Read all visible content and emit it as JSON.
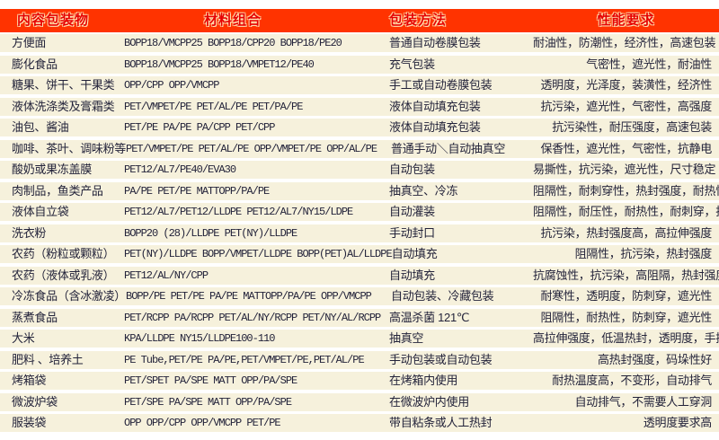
{
  "theme": {
    "header_bg": "#ff3300",
    "header_text": "#e60000",
    "row_bg": "#f6f1dc",
    "body_text": "#23233a",
    "separator": "#ffffff"
  },
  "table": {
    "headers": {
      "item": "内容包装物",
      "materials": "材料组合",
      "method": "包装方法",
      "performance": "性能要求"
    },
    "rows": [
      {
        "item": "方便面",
        "materials": "BOPP18/VMCPP25  BOPP18/CPP20  BOPP18/PE20",
        "method": "普通自动卷膜包装",
        "performance": "耐油性，防潮性，经济性，高速包装"
      },
      {
        "item": "膨化食品",
        "materials": "BOPP18/VMCPP25  BOPP18/VMPET12/PE40",
        "method": "充气包装",
        "performance": "气密性，遮光性，耐油性"
      },
      {
        "item": "糖果、饼干、干果类",
        "materials": "OPP/CPP OPP/VMCPP",
        "method": "手工或自动卷膜包装",
        "performance": "透明度，光泽度，装潢性，经济性"
      },
      {
        "item": "液体洗涤类及膏霜类",
        "materials": "PET/VMPET/PE PET/AL/PE  PET/PA/PE",
        "method": "液体自动填充包装",
        "performance": "抗污染，遮光性，气密性，高强度"
      },
      {
        "item": "油包、酱油",
        "materials": "PET/PE  PA/PE PA/CPP PET/CPP",
        "method": "液体自动填充包装",
        "performance": "抗污染性，耐压强度，高速包装"
      },
      {
        "item": "咖啡、茶叶、调味粉等",
        "materials": "PET/VMPET/PE PET/AL/PE OPP/VMPET/PE OPP/AL/PE",
        "method": "普通手动＼自动抽真空",
        "performance": "保香性，遮光性，气密性，抗静电"
      },
      {
        "item": "酸奶或果冻盖膜",
        "materials": "PET12/AL7/PE40/EVA30",
        "method": "自动包装",
        "performance": "易撕性，抗污染，遮光性，尺寸稳定"
      },
      {
        "item": "肉制品，鱼类产品",
        "materials": "PA/PE PET/PE MATTOPP/PA/PE",
        "method": "抽真空、冷冻",
        "performance": "阻隔性，耐刺穿性，热封强度，耐热性"
      },
      {
        "item": "液体自立袋",
        "materials": "PET12/AL7/PET12/LLDPE PET12/AL7/NY15/LDPE",
        "method": "自动灌装",
        "performance": "阻隔性，耐压性，耐热性，耐刺穿，抗污染"
      },
      {
        "item": "洗衣粉",
        "materials": "BOPP20 (28)/LLDPE PET(NY)/LLDPE",
        "method": "手动封口",
        "performance": "抗污染，热封强度高，高拉伸强度"
      },
      {
        "item": "农药（粉粒或颗粒）",
        "materials": "PET(NY)/LLDPE BOPP/VMPET/LLDPE BOPP(PET)AL/LLDPE",
        "method": "自动填充",
        "performance": "阻隔性，抗污染，热封强度"
      },
      {
        "item": "农药（液体或乳液）",
        "materials": "PET12/AL/NY/CPP",
        "method": "自动填充",
        "performance": "抗腐蚀性，抗污染，高阻隔，热封强度"
      },
      {
        "item": "冷冻食品（含冰激凌）",
        "materials": "BOPP/PE PET/PE PA/PE MATTOPP/PA/PE OPP/VMCPP",
        "method": "自动包装、冷藏包装",
        "performance": "耐寒性，透明度，防刺穿，遮光性"
      },
      {
        "item": "蒸煮食品",
        "materials": "PET/RCPP PA/RCPP PET/AL/NY/RCPP PET/NY/AL/RCPP",
        "method": "高温杀菌 121℃",
        "performance": "阻隔性，耐热性，防刺穿，遮光性"
      },
      {
        "item": "大米",
        "materials": "KPA/LLDPE NY15/LLDPE100-110",
        "method": "抽真空",
        "performance": "高拉伸强度，低温热封，透明度，手挽强度高"
      },
      {
        "item": "肥料 、培养土",
        "materials": "PE Tube,PET/PE  PA/PE,PET/VMPET/PE,PET/AL/PE",
        "method": "手动包装或自动包装",
        "performance": "高热封强度，码垛性好"
      },
      {
        "item": "烤箱袋",
        "materials": "PET/SPET PA/SPE MATT OPP/PA/SPE",
        "method": "在烤箱内使用",
        "performance": "耐热温度高，不变形，自动排气"
      },
      {
        "item": "微波炉袋",
        "materials": "PET/SPE PA/SPE MATT OPP/PA/SPE",
        "method": "在微波炉内使用",
        "performance": "自动排气，不需要人工穿洞"
      },
      {
        "item": "服装袋",
        "materials": "OPP  OPP/CPP OPP/VMCPP PET/PE",
        "method": "带自粘条或人工热封",
        "performance": "透明度要求高"
      }
    ]
  }
}
